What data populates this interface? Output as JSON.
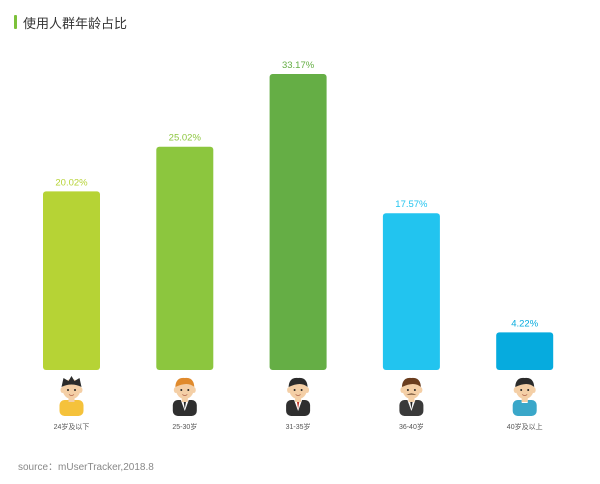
{
  "title": "使用人群年龄占比",
  "accent_color": "#7cc13a",
  "source_label": "source：mUserTracker,2018.8",
  "chart_data": {
    "type": "bar",
    "title": "使用人群年龄占比",
    "categories": [
      "24岁及以下",
      "25-30岁",
      "31-35岁",
      "36-40岁",
      "40岁及以上"
    ],
    "values": [
      20.02,
      25.02,
      33.17,
      17.57,
      4.22
    ],
    "value_labels": [
      "20.02%",
      "25.02%",
      "33.17%",
      "17.57%",
      "4.22%"
    ],
    "bar_colors": [
      "#b6d335",
      "#8cc63e",
      "#65ae45",
      "#22c4ef",
      "#06abde"
    ],
    "icons": [
      "casual-person-icon",
      "businessman-icon",
      "suit-man-icon",
      "mustache-man-icon",
      "older-man-icon"
    ],
    "ylim": [
      0,
      33.17
    ],
    "grid": false,
    "legend": "none"
  }
}
